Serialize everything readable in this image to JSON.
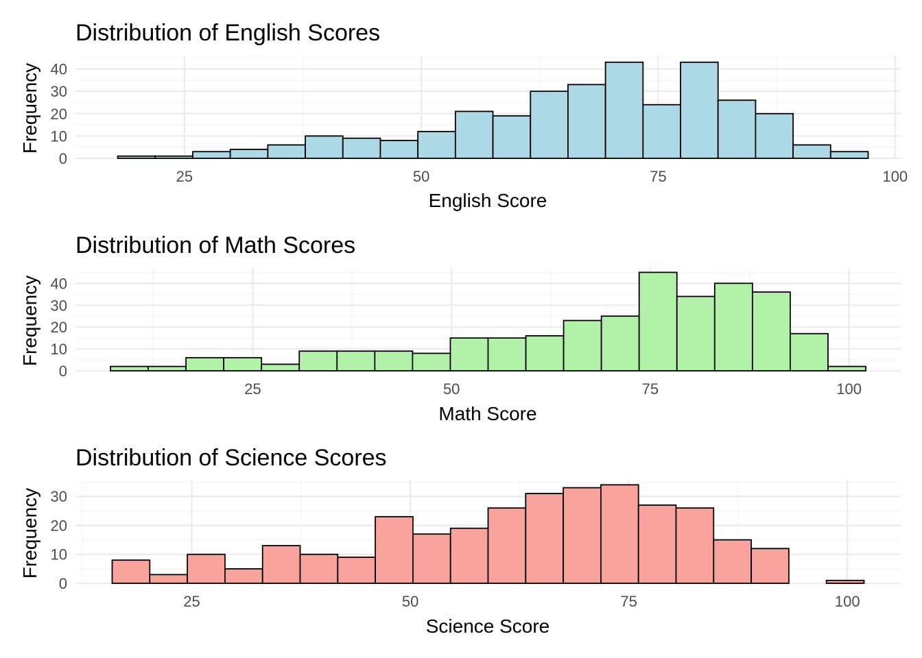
{
  "chart_data": [
    {
      "type": "bar",
      "title": "Distribution of English Scores",
      "xlabel": "English Score",
      "ylabel": "Frequency",
      "fill": "#add8e6",
      "bins": [
        {
          "x0": 17.96,
          "x1": 21.92,
          "count": 1
        },
        {
          "x0": 21.92,
          "x1": 25.88,
          "count": 1
        },
        {
          "x0": 25.88,
          "x1": 29.84,
          "count": 3
        },
        {
          "x0": 29.84,
          "x1": 33.8,
          "count": 4
        },
        {
          "x0": 33.8,
          "x1": 37.76,
          "count": 6
        },
        {
          "x0": 37.76,
          "x1": 41.72,
          "count": 10
        },
        {
          "x0": 41.72,
          "x1": 45.68,
          "count": 9
        },
        {
          "x0": 45.68,
          "x1": 49.64,
          "count": 8
        },
        {
          "x0": 49.64,
          "x1": 53.6,
          "count": 12
        },
        {
          "x0": 53.6,
          "x1": 57.56,
          "count": 21
        },
        {
          "x0": 57.56,
          "x1": 61.52,
          "count": 19
        },
        {
          "x0": 61.52,
          "x1": 65.48,
          "count": 30
        },
        {
          "x0": 65.48,
          "x1": 69.44,
          "count": 33
        },
        {
          "x0": 69.44,
          "x1": 73.4,
          "count": 43
        },
        {
          "x0": 73.4,
          "x1": 77.36,
          "count": 24
        },
        {
          "x0": 77.36,
          "x1": 81.32,
          "count": 43
        },
        {
          "x0": 81.32,
          "x1": 85.28,
          "count": 26
        },
        {
          "x0": 85.28,
          "x1": 89.24,
          "count": 20
        },
        {
          "x0": 89.24,
          "x1": 93.2,
          "count": 6
        },
        {
          "x0": 93.2,
          "x1": 97.16,
          "count": 3
        }
      ],
      "xlim": [
        13.5,
        100.6
      ],
      "ylim": [
        0,
        46
      ],
      "xticks": [
        25,
        50,
        75,
        100
      ],
      "yticks": [
        0,
        10,
        20,
        30,
        40
      ],
      "grid": true
    },
    {
      "type": "bar",
      "title": "Distribution of Math Scores",
      "xlabel": "Math Score",
      "ylabel": "Frequency",
      "fill": "#b2f2a8",
      "bins": [
        {
          "x0": 7.1,
          "x1": 11.85,
          "count": 2
        },
        {
          "x0": 11.85,
          "x1": 16.6,
          "count": 2
        },
        {
          "x0": 16.6,
          "x1": 21.35,
          "count": 6
        },
        {
          "x0": 21.35,
          "x1": 26.1,
          "count": 6
        },
        {
          "x0": 26.1,
          "x1": 30.85,
          "count": 3
        },
        {
          "x0": 30.85,
          "x1": 35.6,
          "count": 9
        },
        {
          "x0": 35.6,
          "x1": 40.35,
          "count": 9
        },
        {
          "x0": 40.35,
          "x1": 45.1,
          "count": 9
        },
        {
          "x0": 45.1,
          "x1": 49.85,
          "count": 8
        },
        {
          "x0": 49.85,
          "x1": 54.6,
          "count": 15
        },
        {
          "x0": 54.6,
          "x1": 59.35,
          "count": 15
        },
        {
          "x0": 59.35,
          "x1": 64.1,
          "count": 16
        },
        {
          "x0": 64.1,
          "x1": 68.85,
          "count": 23
        },
        {
          "x0": 68.85,
          "x1": 73.6,
          "count": 25
        },
        {
          "x0": 73.6,
          "x1": 78.35,
          "count": 45
        },
        {
          "x0": 78.35,
          "x1": 83.1,
          "count": 34
        },
        {
          "x0": 83.1,
          "x1": 87.85,
          "count": 40
        },
        {
          "x0": 87.85,
          "x1": 92.6,
          "count": 36
        },
        {
          "x0": 92.6,
          "x1": 97.35,
          "count": 17
        },
        {
          "x0": 97.35,
          "x1": 102.1,
          "count": 2
        }
      ],
      "xlim": [
        2.7,
        106.5
      ],
      "ylim": [
        0,
        47
      ],
      "xticks": [
        25,
        50,
        75,
        100
      ],
      "yticks": [
        0,
        10,
        20,
        30,
        40
      ],
      "grid": true
    },
    {
      "type": "bar",
      "title": "Distribution of Science Scores",
      "xlabel": "Science Score",
      "ylabel": "Frequency",
      "fill": "#f8a39b",
      "bins": [
        {
          "x0": 15.9,
          "x1": 20.2,
          "count": 8
        },
        {
          "x0": 20.2,
          "x1": 24.5,
          "count": 3
        },
        {
          "x0": 24.5,
          "x1": 28.8,
          "count": 10
        },
        {
          "x0": 28.8,
          "x1": 33.1,
          "count": 5
        },
        {
          "x0": 33.1,
          "x1": 37.4,
          "count": 13
        },
        {
          "x0": 37.4,
          "x1": 41.7,
          "count": 10
        },
        {
          "x0": 41.7,
          "x1": 46.0,
          "count": 9
        },
        {
          "x0": 46.0,
          "x1": 50.3,
          "count": 23
        },
        {
          "x0": 50.3,
          "x1": 54.6,
          "count": 17
        },
        {
          "x0": 54.6,
          "x1": 58.9,
          "count": 19
        },
        {
          "x0": 58.9,
          "x1": 63.2,
          "count": 26
        },
        {
          "x0": 63.2,
          "x1": 67.5,
          "count": 31
        },
        {
          "x0": 67.5,
          "x1": 71.8,
          "count": 33
        },
        {
          "x0": 71.8,
          "x1": 76.1,
          "count": 34
        },
        {
          "x0": 76.1,
          "x1": 80.4,
          "count": 27
        },
        {
          "x0": 80.4,
          "x1": 84.7,
          "count": 26
        },
        {
          "x0": 84.7,
          "x1": 89.0,
          "count": 15
        },
        {
          "x0": 89.0,
          "x1": 93.3,
          "count": 12
        },
        {
          "x0": 93.3,
          "x1": 97.6,
          "count": 0
        },
        {
          "x0": 97.6,
          "x1": 101.9,
          "count": 1
        }
      ],
      "xlim": [
        11.7,
        106.1
      ],
      "ylim": [
        0,
        35.5
      ],
      "xticks": [
        25,
        50,
        75,
        100
      ],
      "yticks": [
        0,
        10,
        20,
        30
      ],
      "grid": true
    }
  ]
}
